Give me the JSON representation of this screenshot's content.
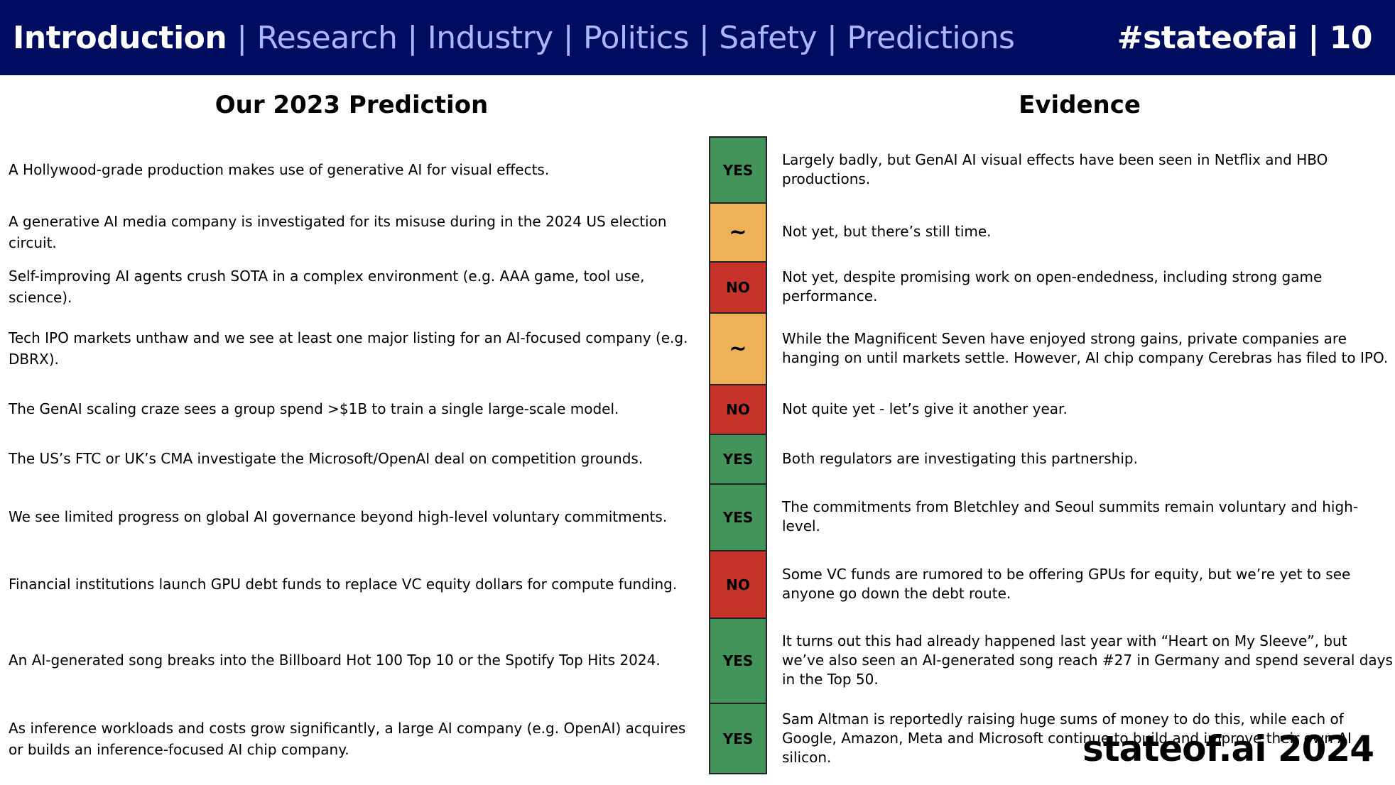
{
  "header": {
    "nav": [
      "Introduction",
      "Research",
      "Industry",
      "Politics",
      "Safety",
      "Predictions"
    ],
    "active_index": 0,
    "separator": "|",
    "tag": "#stateofai | 10"
  },
  "columns": {
    "prediction": "Our 2023 Prediction",
    "evidence": "Evidence"
  },
  "rows": [
    {
      "prediction": "A Hollywood-grade production makes use of generative AI for visual effects.",
      "verdict": "YES",
      "status": "green",
      "evidence": "Largely badly, but GenAI AI visual effects have been seen in Netflix and HBO productions."
    },
    {
      "prediction": "A generative AI media company is investigated for its misuse during in the 2024 US election circuit.",
      "verdict": "~",
      "status": "amber",
      "evidence": "Not yet, but there’s still time."
    },
    {
      "prediction": "Self-improving AI agents crush SOTA in a complex environment (e.g. AAA game, tool use, science).",
      "verdict": "NO",
      "status": "red",
      "evidence": "Not yet, despite promising work on open-endedness, including strong game performance."
    },
    {
      "prediction": "Tech IPO markets unthaw and we see at least one major listing for an AI-focused company (e.g. DBRX).",
      "verdict": "~",
      "status": "amber",
      "evidence": "While the Magnificent Seven have enjoyed strong gains, private companies are hanging on until markets settle. However, AI chip company Cerebras has filed to IPO."
    },
    {
      "prediction": "The GenAI scaling craze sees a group spend >$1B to train a single large-scale model.",
      "verdict": "NO",
      "status": "red",
      "evidence": "Not quite yet - let’s give it another year."
    },
    {
      "prediction": "The US’s FTC or UK’s CMA investigate the Microsoft/OpenAI deal on competition grounds.",
      "verdict": "YES",
      "status": "green",
      "evidence": "Both regulators are investigating this partnership."
    },
    {
      "prediction": "We see limited progress on global AI governance beyond high-level voluntary commitments.",
      "verdict": "YES",
      "status": "green",
      "evidence": "The commitments from Bletchley and Seoul summits remain voluntary and high-level."
    },
    {
      "prediction": "Financial institutions launch GPU debt funds to replace VC equity dollars for compute funding.",
      "verdict": "NO",
      "status": "red",
      "evidence": "Some VC funds are rumored to be offering GPUs for equity, but we’re yet to see anyone go down the debt route."
    },
    {
      "prediction": "An AI-generated song breaks into the Billboard Hot 100 Top 10 or the Spotify Top Hits 2024.",
      "verdict": "YES",
      "status": "green",
      "evidence": "It turns out this had already happened last year with “Heart on My Sleeve”, but we’ve also seen an AI-generated song reach #27 in Germany and spend several days in the Top 50."
    },
    {
      "prediction": "As inference workloads and costs grow significantly, a large AI company (e.g. OpenAI) acquires or builds an inference-focused AI chip company.",
      "verdict": "YES",
      "status": "green",
      "evidence": "Sam Altman is reportedly raising huge sums of money to do this, while each of Google, Amazon, Meta and Microsoft continue to build and improve their own AI silicon."
    }
  ],
  "status_colors": {
    "green": "#43945a",
    "amber": "#eeb157",
    "red": "#c7322a"
  },
  "footer": {
    "brand": "stateof.ai 2024"
  }
}
